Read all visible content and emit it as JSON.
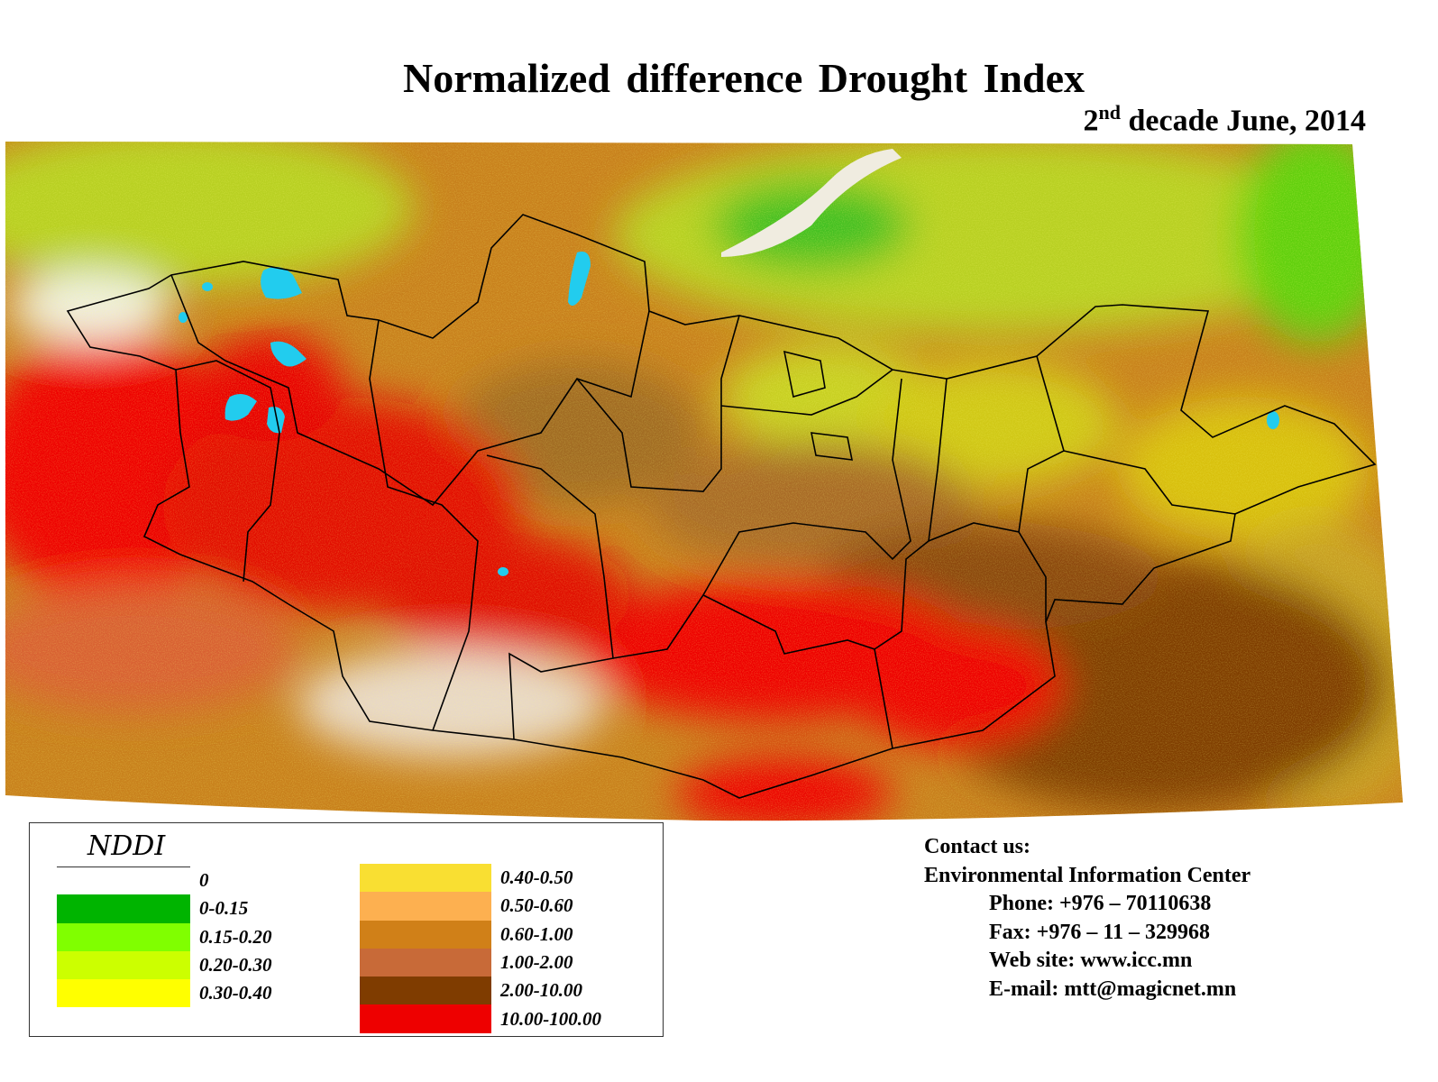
{
  "title": "Normalized difference Drought Index",
  "subtitle": {
    "ordinal": "2",
    "suffix": "nd",
    "rest": " decade June, 2014"
  },
  "legend": {
    "title": "NDDI",
    "classes": [
      {
        "label": "0",
        "color": "#ffffff"
      },
      {
        "label": "0-0.15",
        "color": "#00b400"
      },
      {
        "label": "0.15-0.20",
        "color": "#80ff00"
      },
      {
        "label": "0.20-0.30",
        "color": "#ccff00"
      },
      {
        "label": "0.30-0.40",
        "color": "#ffff00"
      },
      {
        "label": "0.40-0.50",
        "color": "#f9df32"
      },
      {
        "label": "0.50-0.60",
        "color": "#fdb050"
      },
      {
        "label": "0.60-1.00",
        "color": "#d08018"
      },
      {
        "label": "1.00-2.00",
        "color": "#c86a38"
      },
      {
        "label": "2.00-10.00",
        "color": "#7f3c00"
      },
      {
        "label": "10.00-100.00",
        "color": "#ee0000"
      }
    ]
  },
  "contact": {
    "heading": "Contact us:",
    "org": "Environmental Information Center",
    "phone": "Phone: +976 – 70110638",
    "fax": "Fax: +976 – 11 – 329968",
    "web": "Web site: www.icc.mn",
    "email": "E-mail: mtt@magicnet.mn"
  },
  "colors": {
    "water": "#22ccee",
    "border": "#000000"
  }
}
